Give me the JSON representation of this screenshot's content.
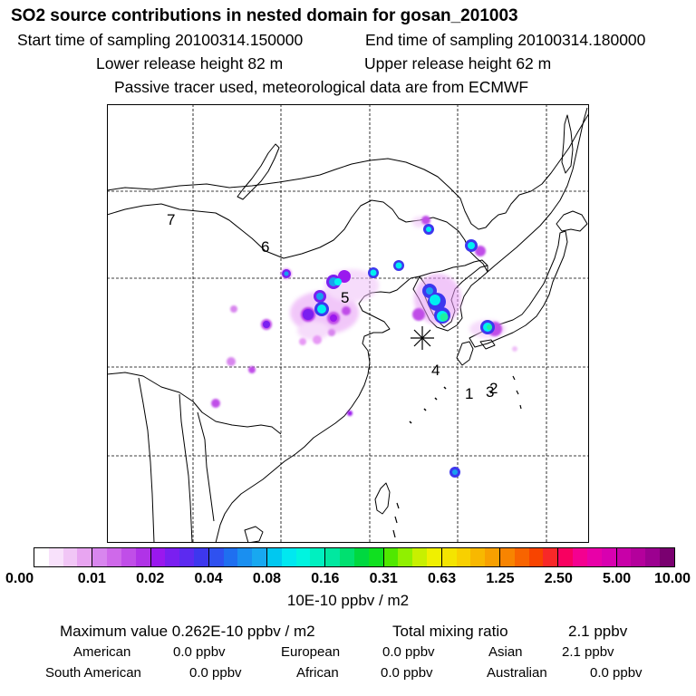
{
  "title": "SO2 source contributions in nested domain for gosan_201003",
  "sampling": {
    "start": "Start time of sampling 20100314.150000",
    "end": "End time of sampling 20100314.180000"
  },
  "release": {
    "lower": "Lower release height   82 m",
    "upper": "Upper release height   62 m"
  },
  "note": "Passive tracer used, meteorological data are from ECMWF",
  "map": {
    "region_labels": [
      "1",
      "2",
      "3",
      "4",
      "5",
      "6",
      "7"
    ],
    "receptor_marker": "asterisk-icon",
    "plume_colors": [
      "#e79af5",
      "#c04ee8",
      "#9a18ee",
      "#3d37ee",
      "#18a0ef",
      "#00f0f0",
      "#1ef0a0"
    ]
  },
  "legend": {
    "ticks": [
      "0.00",
      "0.01",
      "0.02",
      "0.04",
      "0.08",
      "0.16",
      "0.31",
      "0.63",
      "1.25",
      "2.50",
      "5.00",
      "10.00"
    ],
    "colors": [
      "#ffffff",
      "#f8e1fb",
      "#f1c6f6",
      "#e8a5f1",
      "#d886ee",
      "#cf69ea",
      "#c04ee8",
      "#b033e7",
      "#9a18ee",
      "#7a1ff0",
      "#5c2af0",
      "#3d37ee",
      "#2f51f0",
      "#1f6ff0",
      "#1a8ff0",
      "#18a8f0",
      "#00c8f0",
      "#00e8f0",
      "#00f4e0",
      "#00f0c0",
      "#00e8a0",
      "#00e070",
      "#00d840",
      "#10e020",
      "#50e800",
      "#90f000",
      "#c8f000",
      "#f0f000",
      "#f4e400",
      "#f8d000",
      "#f8b800",
      "#f8a000",
      "#f88400",
      "#f86400",
      "#f84400",
      "#f82828",
      "#f80060",
      "#f40090",
      "#e800a8",
      "#d800b0",
      "#c800a8",
      "#b4009c",
      "#9c0090",
      "#7a0070"
    ],
    "unit": "10E-10 ppbv / m2"
  },
  "stats": {
    "max_label": "Maximum value  0.262E-10 ppbv / m2",
    "total_label": "Total mixing ratio",
    "total_value": "2.1 ppbv",
    "regions": [
      {
        "name": "American",
        "value": "0.0 ppbv"
      },
      {
        "name": "European",
        "value": "0.0 ppbv"
      },
      {
        "name": "Asian",
        "value": "2.1 ppbv"
      },
      {
        "name": "South American",
        "value": "0.0 ppbv"
      },
      {
        "name": "African",
        "value": "0.0 ppbv"
      },
      {
        "name": "Australian",
        "value": "0.0 ppbv"
      }
    ]
  }
}
